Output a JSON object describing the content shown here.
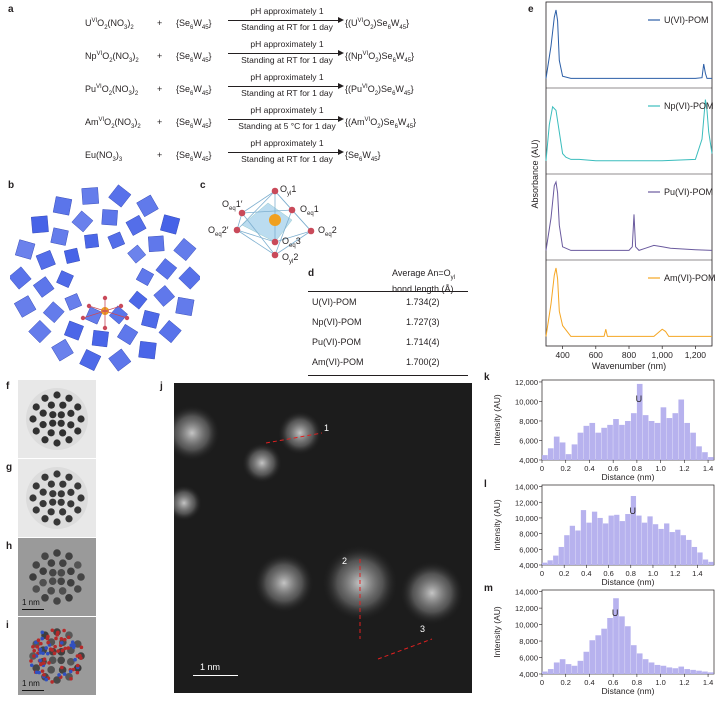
{
  "panel_labels": {
    "a": "a",
    "b": "b",
    "c": "c",
    "d": "d",
    "e": "e",
    "f": "f",
    "g": "g",
    "h": "h",
    "i": "i",
    "j": "j",
    "k": "k",
    "l": "l",
    "m": "m"
  },
  "reactions": [
    {
      "reactant": "U",
      "reactant_sup": "VI",
      "reactant_tail": "O",
      "reactant_sub1": "2",
      "reactant_tail2": "(NO",
      "reactant_sub2": "3",
      "reactant_tail3": ")",
      "reactant_sub3": "2",
      "plus": "+",
      "pom": "{Se",
      "pom_sub1": "6",
      "pom_mid": "W",
      "pom_sub2": "45",
      "pom_end": "}",
      "cond1": "pH approximately 1",
      "cond2": "Standing at RT for 1 day",
      "product": "{(U",
      "product_sup": "VI",
      "product_tail": "O",
      "product_sub1": "2",
      "product_tail2": ")Se",
      "product_sub2": "6",
      "product_tail3": "W",
      "product_sub3": "45",
      "product_end": "}"
    },
    {
      "reactant": "Np",
      "reactant_sup": "VI",
      "reactant_tail": "O",
      "reactant_sub1": "2",
      "reactant_tail2": "(NO",
      "reactant_sub2": "3",
      "reactant_tail3": ")",
      "reactant_sub3": "2",
      "plus": "+",
      "pom": "{Se",
      "pom_sub1": "6",
      "pom_mid": "W",
      "pom_sub2": "45",
      "pom_end": "}",
      "cond1": "pH approximately 1",
      "cond2": "Standing at RT for 1 day",
      "product": "{(Np",
      "product_sup": "VI",
      "product_tail": "O",
      "product_sub1": "2",
      "product_tail2": ")Se",
      "product_sub2": "6",
      "product_tail3": "W",
      "product_sub3": "45",
      "product_end": "}"
    },
    {
      "reactant": "Pu",
      "reactant_sup": "VI",
      "reactant_tail": "O",
      "reactant_sub1": "2",
      "reactant_tail2": "(NO",
      "reactant_sub2": "3",
      "reactant_tail3": ")",
      "reactant_sub3": "2",
      "plus": "+",
      "pom": "{Se",
      "pom_sub1": "6",
      "pom_mid": "W",
      "pom_sub2": "45",
      "pom_end": "}",
      "cond1": "pH approximately 1",
      "cond2": "Standing at RT for 1 day",
      "product": "{(Pu",
      "product_sup": "VI",
      "product_tail": "O",
      "product_sub1": "2",
      "product_tail2": ")Se",
      "product_sub2": "6",
      "product_tail3": "W",
      "product_sub3": "45",
      "product_end": "}"
    },
    {
      "reactant": "Am",
      "reactant_sup": "VI",
      "reactant_tail": "O",
      "reactant_sub1": "2",
      "reactant_tail2": "(NO",
      "reactant_sub2": "3",
      "reactant_tail3": ")",
      "reactant_sub3": "2",
      "plus": "+",
      "pom": "{Se",
      "pom_sub1": "6",
      "pom_mid": "W",
      "pom_sub2": "45",
      "pom_end": "}",
      "cond1": "pH approximately 1",
      "cond2": "Standing at 5 °C for 1 day",
      "product": "{(Am",
      "product_sup": "VI",
      "product_tail": "O",
      "product_sub1": "2",
      "product_tail2": ")Se",
      "product_sub2": "6",
      "product_tail3": "W",
      "product_sub3": "45",
      "product_end": "}"
    },
    {
      "reactant": "Eu(NO",
      "reactant_sup": "",
      "reactant_tail": "",
      "reactant_sub1": "3",
      "reactant_tail2": ")",
      "reactant_sub2": "3",
      "reactant_tail3": "",
      "reactant_sub3": "",
      "plus": "+",
      "pom": "{Se",
      "pom_sub1": "6",
      "pom_mid": "W",
      "pom_sub2": "45",
      "pom_end": "}",
      "cond1": "pH approximately 1",
      "cond2": "Standing at RT for 1 day",
      "product": "{Se",
      "product_sup": "",
      "product_tail": "",
      "product_sub1": "6",
      "product_tail2": "W",
      "product_sub2": "45",
      "product_tail3": "}",
      "product_sub3": "",
      "product_end": ""
    }
  ],
  "atom_labels": {
    "oyl1": "O",
    "oyl1_sub": "yl",
    "oyl1_n": "1",
    "oeq1p": "O",
    "oeq1p_sub": "eq",
    "oeq1p_n": "1′",
    "oeq1": "O",
    "oeq1_sub": "eq",
    "oeq1_n": "1",
    "oeq2p": "O",
    "oeq2p_sub": "eq",
    "oeq2p_n": "2′",
    "oeq2": "O",
    "oeq2_sub": "eq",
    "oeq2_n": "2",
    "oeq3": "O",
    "oeq3_sub": "eq",
    "oeq3_n": "3",
    "oyl2": "O",
    "oyl2_sub": "yl",
    "oyl2_n": "2"
  },
  "table_d": {
    "header_line1": "Average An=O",
    "header_sub": "yl",
    "header_line2": "bond length (Å)",
    "rows": [
      {
        "name": "U(VI)-POM",
        "value": "1.734(2)"
      },
      {
        "name": "Np(VI)-POM",
        "value": "1.727(3)"
      },
      {
        "name": "Pu(VI)-POM",
        "value": "1.714(4)"
      },
      {
        "name": "Am(VI)-POM",
        "value": "1.700(2)"
      }
    ]
  },
  "panel_e": {
    "ylabel": "Absorbance (AU)",
    "xlabel": "Wavenumber (nm)",
    "xticks": [
      "400",
      "600",
      "800",
      "1,000",
      "1,200"
    ],
    "xlim": [
      300,
      1300
    ],
    "legend": [
      "U(VI)-POM",
      "Np(VI)-POM",
      "Pu(VI)-POM",
      "Am(VI)-POM"
    ],
    "colors": [
      "#2b5ea7",
      "#3bbdbd",
      "#6a5a9e",
      "#f5a623"
    ]
  },
  "panel_j": {
    "markers": [
      "1",
      "2",
      "3"
    ],
    "scale": "1 nm"
  },
  "panel_h": {
    "scale": "1 nm"
  },
  "panel_i": {
    "scale": "1 nm"
  },
  "chart_data": [
    {
      "type": "line",
      "title": "",
      "xlabel": "Wavenumber (nm)",
      "ylabel": "Absorbance (AU)",
      "xlim": [
        300,
        1300
      ],
      "series": [
        {
          "name": "U(VI)-POM",
          "x": [
            300,
            330,
            350,
            360,
            370,
            380,
            400,
            450,
            600,
            800,
            1000,
            1200,
            1240,
            1250,
            1260,
            1270,
            1300
          ],
          "y": [
            0.05,
            0.5,
            0.9,
            1.0,
            0.85,
            0.3,
            0.08,
            0.05,
            0.05,
            0.05,
            0.05,
            0.05,
            0.06,
            0.25,
            0.12,
            0.05,
            0.05
          ]
        },
        {
          "name": "Np(VI)-POM",
          "x": [
            300,
            320,
            340,
            360,
            380,
            400,
            420,
            450,
            500,
            600,
            800,
            1000,
            1200,
            1240,
            1260,
            1270,
            1280,
            1300
          ],
          "y": [
            0.1,
            0.6,
            0.85,
            0.8,
            0.5,
            0.2,
            0.15,
            0.12,
            0.12,
            0.1,
            0.1,
            0.1,
            0.12,
            0.4,
            0.95,
            0.8,
            0.5,
            0.2
          ]
        },
        {
          "name": "Pu(VI)-POM",
          "x": [
            300,
            330,
            350,
            360,
            370,
            380,
            400,
            450,
            600,
            800,
            820,
            830,
            840,
            860,
            900,
            950,
            1000,
            1050,
            1200,
            1300
          ],
          "y": [
            0.05,
            0.5,
            0.95,
            1.0,
            0.85,
            0.4,
            0.1,
            0.05,
            0.05,
            0.05,
            0.1,
            0.55,
            0.1,
            0.05,
            0.08,
            0.12,
            0.1,
            0.08,
            0.06,
            0.05
          ]
        },
        {
          "name": "Am(VI)-POM",
          "x": [
            300,
            330,
            350,
            360,
            370,
            380,
            400,
            450,
            600,
            650,
            660,
            670,
            800,
            950,
            1000,
            1020,
            1040,
            1100,
            1200,
            1300
          ],
          "y": [
            0.05,
            0.5,
            0.9,
            1.0,
            0.85,
            0.4,
            0.2,
            0.05,
            0.05,
            0.05,
            0.15,
            0.05,
            0.05,
            0.05,
            0.15,
            0.12,
            0.05,
            0.05,
            0.05,
            0.05
          ]
        }
      ]
    },
    {
      "type": "bar",
      "title": "",
      "xlabel": "Distance (nm)",
      "ylabel": "Intensity (AU)",
      "xlim": [
        0,
        1.45
      ],
      "ylim": [
        4000,
        12200
      ],
      "annotation": "U",
      "xticks": [
        "0",
        "0.2",
        "0.4",
        "0.6",
        "0.8",
        "1.0",
        "1.2",
        "1.4"
      ],
      "yticks": [
        "4,000",
        "6,000",
        "8,000",
        "10,000",
        "12,000"
      ],
      "x": [
        0.0,
        0.05,
        0.1,
        0.15,
        0.2,
        0.25,
        0.3,
        0.35,
        0.4,
        0.45,
        0.5,
        0.55,
        0.6,
        0.65,
        0.7,
        0.75,
        0.8,
        0.85,
        0.9,
        0.95,
        1.0,
        1.05,
        1.1,
        1.15,
        1.2,
        1.25,
        1.3,
        1.35,
        1.4
      ],
      "values": [
        4500,
        5200,
        6400,
        5800,
        4600,
        5600,
        6800,
        7500,
        7800,
        6800,
        7300,
        7600,
        8200,
        7600,
        8000,
        8800,
        11800,
        8600,
        8000,
        7800,
        9400,
        8300,
        8800,
        10200,
        7800,
        6800,
        5400,
        4800,
        4300
      ]
    },
    {
      "type": "bar",
      "title": "",
      "xlabel": "Distance (nm)",
      "ylabel": "Intensity (AU)",
      "xlim": [
        0,
        1.55
      ],
      "ylim": [
        4000,
        14200
      ],
      "annotation": "U",
      "xticks": [
        "0",
        "0.2",
        "0.4",
        "0.6",
        "0.8",
        "1.0",
        "1.2",
        "1.4"
      ],
      "yticks": [
        "4,000",
        "6,000",
        "8,000",
        "10,000",
        "12,000",
        "14,000"
      ],
      "x": [
        0.0,
        0.05,
        0.1,
        0.15,
        0.2,
        0.25,
        0.3,
        0.35,
        0.4,
        0.45,
        0.5,
        0.55,
        0.6,
        0.65,
        0.7,
        0.75,
        0.8,
        0.85,
        0.9,
        0.95,
        1.0,
        1.05,
        1.1,
        1.15,
        1.2,
        1.25,
        1.3,
        1.35,
        1.4,
        1.45,
        1.5
      ],
      "values": [
        4300,
        4600,
        5200,
        6300,
        7800,
        9000,
        8400,
        11000,
        9400,
        10800,
        10000,
        9300,
        10300,
        10400,
        9600,
        10500,
        12800,
        10300,
        9400,
        10200,
        9200,
        8600,
        9300,
        8200,
        8500,
        7800,
        7200,
        6300,
        5600,
        4700,
        4400
      ]
    },
    {
      "type": "bar",
      "title": "",
      "xlabel": "Distance (nm)",
      "ylabel": "Intensity (AU)",
      "xlim": [
        0,
        1.45
      ],
      "ylim": [
        4000,
        14200
      ],
      "annotation": "U",
      "xticks": [
        "0",
        "0.2",
        "0.4",
        "0.6",
        "0.8",
        "1.0",
        "1.2",
        "1.4"
      ],
      "yticks": [
        "4,000",
        "6,000",
        "8,000",
        "10,000",
        "12,000",
        "14,000"
      ],
      "x": [
        0.0,
        0.05,
        0.1,
        0.15,
        0.2,
        0.25,
        0.3,
        0.35,
        0.4,
        0.45,
        0.5,
        0.55,
        0.6,
        0.65,
        0.7,
        0.75,
        0.8,
        0.85,
        0.9,
        0.95,
        1.0,
        1.05,
        1.1,
        1.15,
        1.2,
        1.25,
        1.3,
        1.35,
        1.4
      ],
      "values": [
        4300,
        4600,
        5400,
        5800,
        5200,
        5000,
        5600,
        6700,
        8100,
        8700,
        9500,
        10800,
        13200,
        11000,
        9800,
        7500,
        6500,
        5800,
        5400,
        5100,
        5000,
        4800,
        4700,
        4900,
        4600,
        4500,
        4400,
        4300,
        4200
      ]
    }
  ]
}
